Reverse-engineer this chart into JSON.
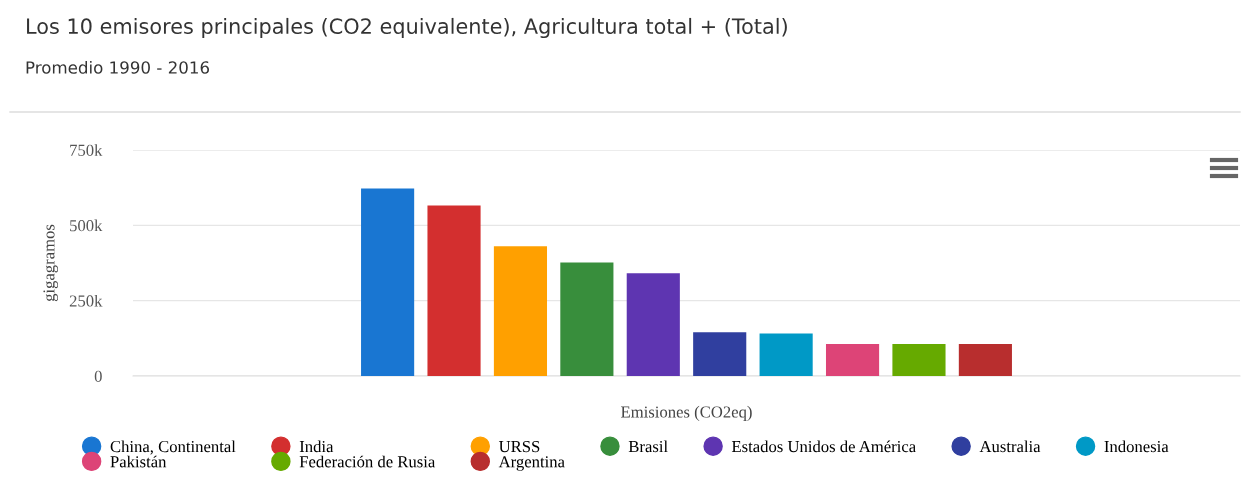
{
  "chart_data": {
    "type": "bar",
    "title": "Los 10 emisores principales (CO2 equivalente), Agricultura total + (Total)",
    "subtitle": "Promedio 1990 - 2016",
    "xlabel": "Emisiones (CO2eq)",
    "ylabel": "gigagramos",
    "categories": [
      null
    ],
    "series": [
      {
        "name": "China, Continental",
        "color": "#1976d2",
        "values": [
          622000
        ]
      },
      {
        "name": "India",
        "color": "#d32f2f",
        "values": [
          566000
        ]
      },
      {
        "name": "URSS",
        "color": "#ffa000",
        "values": [
          431000
        ]
      },
      {
        "name": "Brasil",
        "color": "#388e3c",
        "values": [
          377000
        ]
      },
      {
        "name": "Estados Unidos de América",
        "color": "#5e35b1",
        "values": [
          341000
        ]
      },
      {
        "name": "Australia",
        "color": "#303f9f",
        "values": [
          145000
        ]
      },
      {
        "name": "Indonesia",
        "color": "#0099c6",
        "values": [
          141000
        ]
      },
      {
        "name": "Pakistán",
        "color": "#dd4477",
        "values": [
          106000
        ]
      },
      {
        "name": "Federación de Rusia",
        "color": "#66aa00",
        "values": [
          106000
        ]
      },
      {
        "name": "Argentina",
        "color": "#b82e2e",
        "values": [
          106000
        ]
      }
    ],
    "ylim": [
      0,
      750000
    ],
    "yticks": [
      0,
      {
        "value": 250000,
        "label": "250k"
      },
      {
        "value": 500000,
        "label": "500k"
      },
      {
        "value": 750000,
        "label": "750k"
      }
    ],
    "grid": "y",
    "legend": "bottom"
  }
}
